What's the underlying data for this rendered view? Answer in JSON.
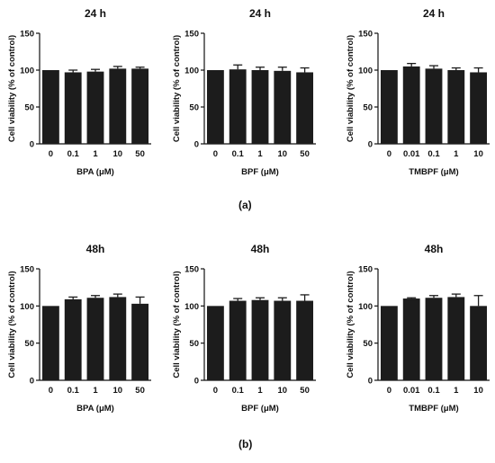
{
  "figure": {
    "row_labels": [
      "(a)",
      "(b)"
    ],
    "bar_color": "#1c1c1c",
    "axis_color": "#111111"
  },
  "chart_data": [
    {
      "type": "bar",
      "title": "24 h",
      "xlabel": "BPA (μM)",
      "ylabel": "Cell viability (% of control)",
      "categories": [
        "0",
        "0.1",
        "1",
        "10",
        "50"
      ],
      "values": [
        100,
        97,
        98,
        102,
        102
      ],
      "errors": [
        0,
        3,
        3,
        3,
        2
      ],
      "ylim": [
        0,
        150
      ],
      "yticks": [
        0,
        50,
        100,
        150
      ],
      "grid": false,
      "legend": false
    },
    {
      "type": "bar",
      "title": "24 h",
      "xlabel": "BPF (μM)",
      "ylabel": "Cell viability (% of control)",
      "categories": [
        "0",
        "0.1",
        "1",
        "10",
        "50"
      ],
      "values": [
        100,
        101,
        100,
        99,
        97
      ],
      "errors": [
        0,
        6,
        4,
        5,
        6
      ],
      "ylim": [
        0,
        150
      ],
      "yticks": [
        0,
        50,
        100,
        150
      ],
      "grid": false,
      "legend": false
    },
    {
      "type": "bar",
      "title": "24 h",
      "xlabel": "TMBPF (μM)",
      "ylabel": "Cell viability (% of control)",
      "categories": [
        "0",
        "0.01",
        "0.1",
        "1",
        "10"
      ],
      "values": [
        100,
        105,
        102,
        100,
        97
      ],
      "errors": [
        0,
        4,
        4,
        3,
        6
      ],
      "ylim": [
        0,
        150
      ],
      "yticks": [
        0,
        50,
        100,
        150
      ],
      "grid": false,
      "legend": false
    },
    {
      "type": "bar",
      "title": "48h",
      "xlabel": "BPA (μM)",
      "ylabel": "Cell viability (% of control)",
      "categories": [
        "0",
        "0.1",
        "1",
        "10",
        "50"
      ],
      "values": [
        100,
        109,
        111,
        112,
        103
      ],
      "errors": [
        0,
        3,
        3,
        4,
        9
      ],
      "ylim": [
        0,
        150
      ],
      "yticks": [
        0,
        50,
        100,
        150
      ],
      "grid": false,
      "legend": false
    },
    {
      "type": "bar",
      "title": "48h",
      "xlabel": "BPF (μM)",
      "ylabel": "Cell viability (% of control)",
      "categories": [
        "0",
        "0.1",
        "1",
        "10",
        "50"
      ],
      "values": [
        100,
        107,
        108,
        107,
        107
      ],
      "errors": [
        0,
        3,
        3,
        4,
        8
      ],
      "ylim": [
        0,
        150
      ],
      "yticks": [
        0,
        50,
        100,
        150
      ],
      "grid": false,
      "legend": false
    },
    {
      "type": "bar",
      "title": "48h",
      "xlabel": "TMBPF (μM)",
      "ylabel": "Cell viability (% of control)",
      "categories": [
        "0",
        "0.01",
        "0.1",
        "1",
        "10"
      ],
      "values": [
        100,
        110,
        111,
        112,
        100
      ],
      "errors": [
        0,
        1,
        3,
        4,
        14
      ],
      "ylim": [
        0,
        150
      ],
      "yticks": [
        0,
        50,
        100,
        150
      ],
      "grid": false,
      "legend": false
    }
  ]
}
